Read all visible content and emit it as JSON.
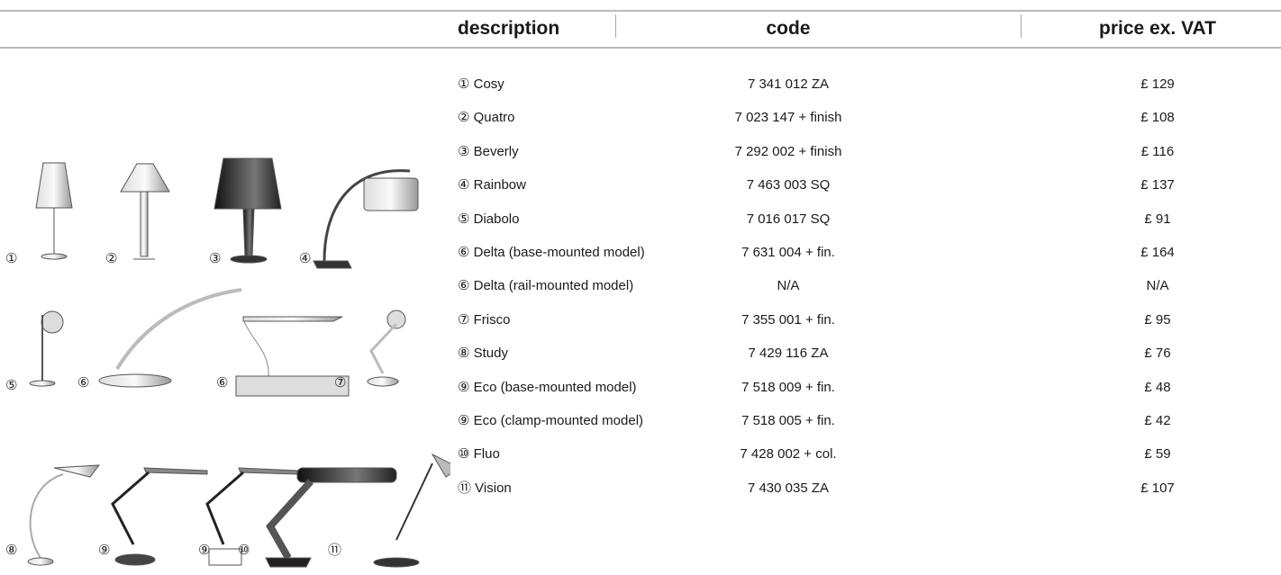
{
  "table": {
    "header": [
      "description",
      "code",
      "price ex. VAT"
    ],
    "rows": [
      [
        "① Cosy",
        "7 341 012 ZA",
        "£ 129"
      ],
      [
        "② Quatro",
        "7 023 147 + finish",
        "£ 108"
      ],
      [
        "③ Beverly",
        "7 292 002 + finish",
        "£ 116"
      ],
      [
        "④ Rainbow",
        "7 463 003 SQ",
        "£ 137"
      ],
      [
        "⑤ Diabolo",
        "7 016 017 SQ",
        "£ 91"
      ],
      [
        "⑥ Delta (base-mounted model)",
        "7 631 004 + fin.",
        "£ 164"
      ],
      [
        "⑥ Delta (rail-mounted model)",
        "N/A",
        "N/A"
      ],
      [
        "⑦ Frisco",
        "7 355 001 + fin.",
        "£ 95"
      ],
      [
        "⑧ Study",
        "7 429 116 ZA",
        "£ 76"
      ],
      [
        "⑨ Eco (base-mounted model)",
        "7 518 009 + fin.",
        "£ 48"
      ],
      [
        "⑨ Eco (clamp-mounted model)",
        "7 518 005 + fin.",
        "£ 42"
      ],
      [
        "⑩ Fluo",
        "7 428 002 + col.",
        "£ 59"
      ],
      [
        "⑪ Vision",
        "7 430 035 ZA",
        "£ 107"
      ]
    ]
  },
  "lamps": [
    {
      "label": "①"
    },
    {
      "label": "②"
    },
    {
      "label": "③"
    },
    {
      "label": "④"
    },
    {
      "label": "⑤"
    },
    {
      "label": "⑥"
    },
    {
      "label": "⑥"
    },
    {
      "label": "⑦"
    },
    {
      "label": "⑧"
    },
    {
      "label": "⑨"
    },
    {
      "label": "⑨"
    },
    {
      "label": "⑩"
    },
    {
      "label": "⑪"
    }
  ]
}
